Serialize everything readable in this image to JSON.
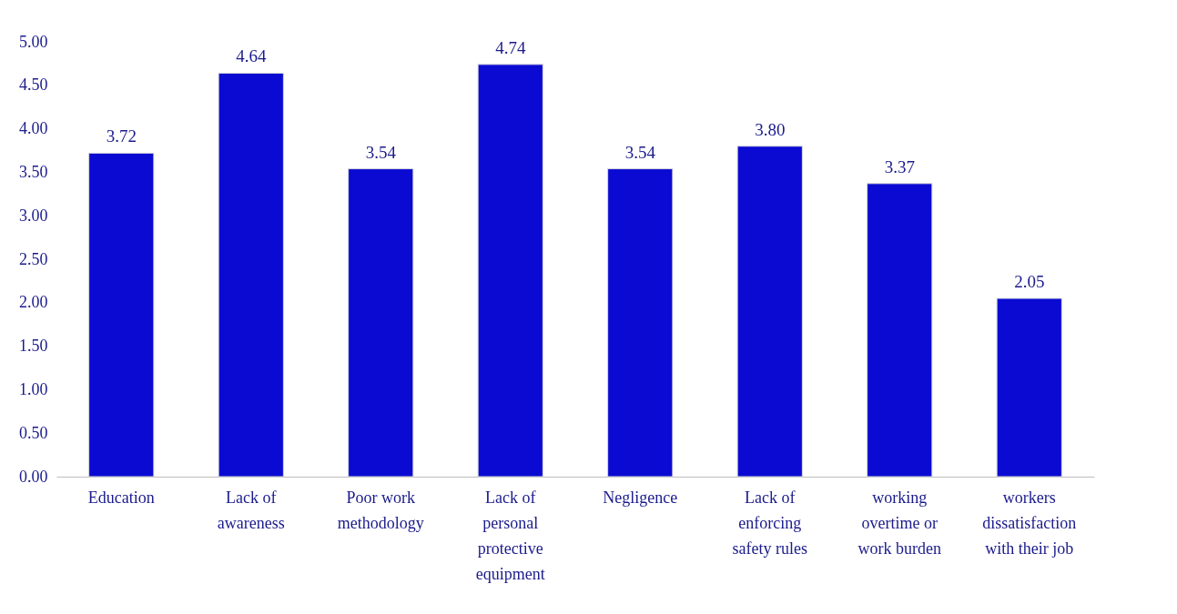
{
  "chart_data": {
    "type": "bar",
    "categories": [
      "Education",
      "Lack of awareness",
      "Poor work methodology",
      "Lack of personal protective equipment",
      "Negligence",
      "Lack of enforcing safety rules",
      "working overtime or work burden",
      "workers dissatisfaction with their job"
    ],
    "values": [
      3.72,
      4.64,
      3.54,
      4.74,
      3.54,
      3.8,
      3.37,
      2.05
    ],
    "value_labels": [
      "3.72",
      "4.64",
      "3.54",
      "4.74",
      "3.54",
      "3.80",
      "3.37",
      "2.05"
    ],
    "color": "#0a0ad2",
    "ylim": [
      0,
      5
    ],
    "yticks": [
      {
        "value": 0,
        "label": "0.00"
      },
      {
        "value": 0.5,
        "label": "0.50"
      },
      {
        "value": 1,
        "label": "1.00"
      },
      {
        "value": 1.5,
        "label": "1.50"
      },
      {
        "value": 2,
        "label": "2.00"
      },
      {
        "value": 2.5,
        "label": "2.50"
      },
      {
        "value": 3,
        "label": "3.00"
      },
      {
        "value": 3.5,
        "label": "3.50"
      },
      {
        "value": 4,
        "label": "4.00"
      },
      {
        "value": 4.5,
        "label": "4.50"
      },
      {
        "value": 5,
        "label": "5.00"
      }
    ],
    "grid": false
  }
}
